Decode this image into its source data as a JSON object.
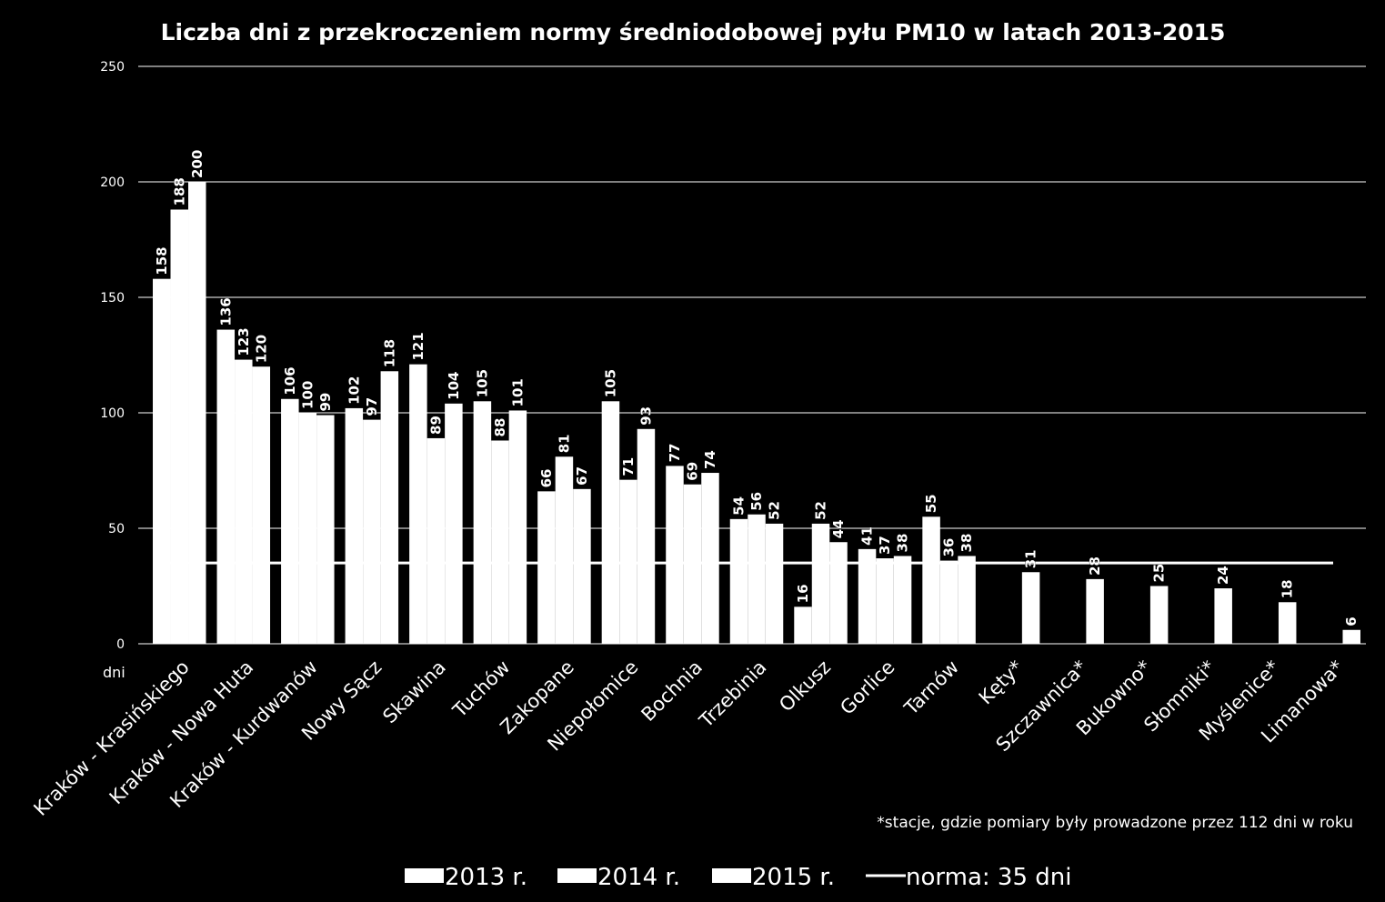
{
  "chart_data": {
    "type": "bar",
    "title": "Liczba dni z przekroczeniem normy średniodobowej pyłu PM10 w latach 2013-2015",
    "ylabel": "dni",
    "ylim": [
      0,
      250
    ],
    "yticks": [
      0,
      50,
      100,
      150,
      200,
      250
    ],
    "grid": true,
    "legend_position": "bottom",
    "categories": [
      "Kraków - Krasińskiego",
      "Kraków - Nowa Huta",
      "Kraków - Kurdwanów",
      "Nowy Sącz",
      "Skawina",
      "Tuchów",
      "Zakopane",
      "Niepołomice",
      "Bochnia",
      "Trzebinia",
      "Olkusz",
      "Gorlice",
      "Tarnów",
      "Kęty*",
      "Szczawnica*",
      "Bukowno*",
      "Słomniki*",
      "Myślenice*",
      "Limanowa*"
    ],
    "series": [
      {
        "name": "2013 r.",
        "values": [
          158,
          136,
          106,
          102,
          121,
          105,
          66,
          105,
          77,
          54,
          16,
          41,
          55,
          null,
          null,
          null,
          null,
          null,
          null
        ]
      },
      {
        "name": "2014 r.",
        "values": [
          188,
          123,
          100,
          97,
          89,
          88,
          81,
          71,
          69,
          56,
          52,
          37,
          36,
          null,
          null,
          null,
          null,
          null,
          null
        ]
      },
      {
        "name": "2015 r.",
        "values": [
          200,
          120,
          99,
          118,
          104,
          101,
          67,
          93,
          74,
          52,
          44,
          38,
          38,
          31,
          28,
          25,
          24,
          18,
          6
        ]
      }
    ],
    "reference_line": {
      "name": "norma: 35 dni",
      "value": 35
    },
    "annotation": "*stacje, gdzie pomiary były prowadzone przez 112 dni w roku",
    "colors": {
      "background": "#000000",
      "bars": "#ffffff",
      "grid": "#ffffff",
      "text": "#ffffff"
    }
  }
}
